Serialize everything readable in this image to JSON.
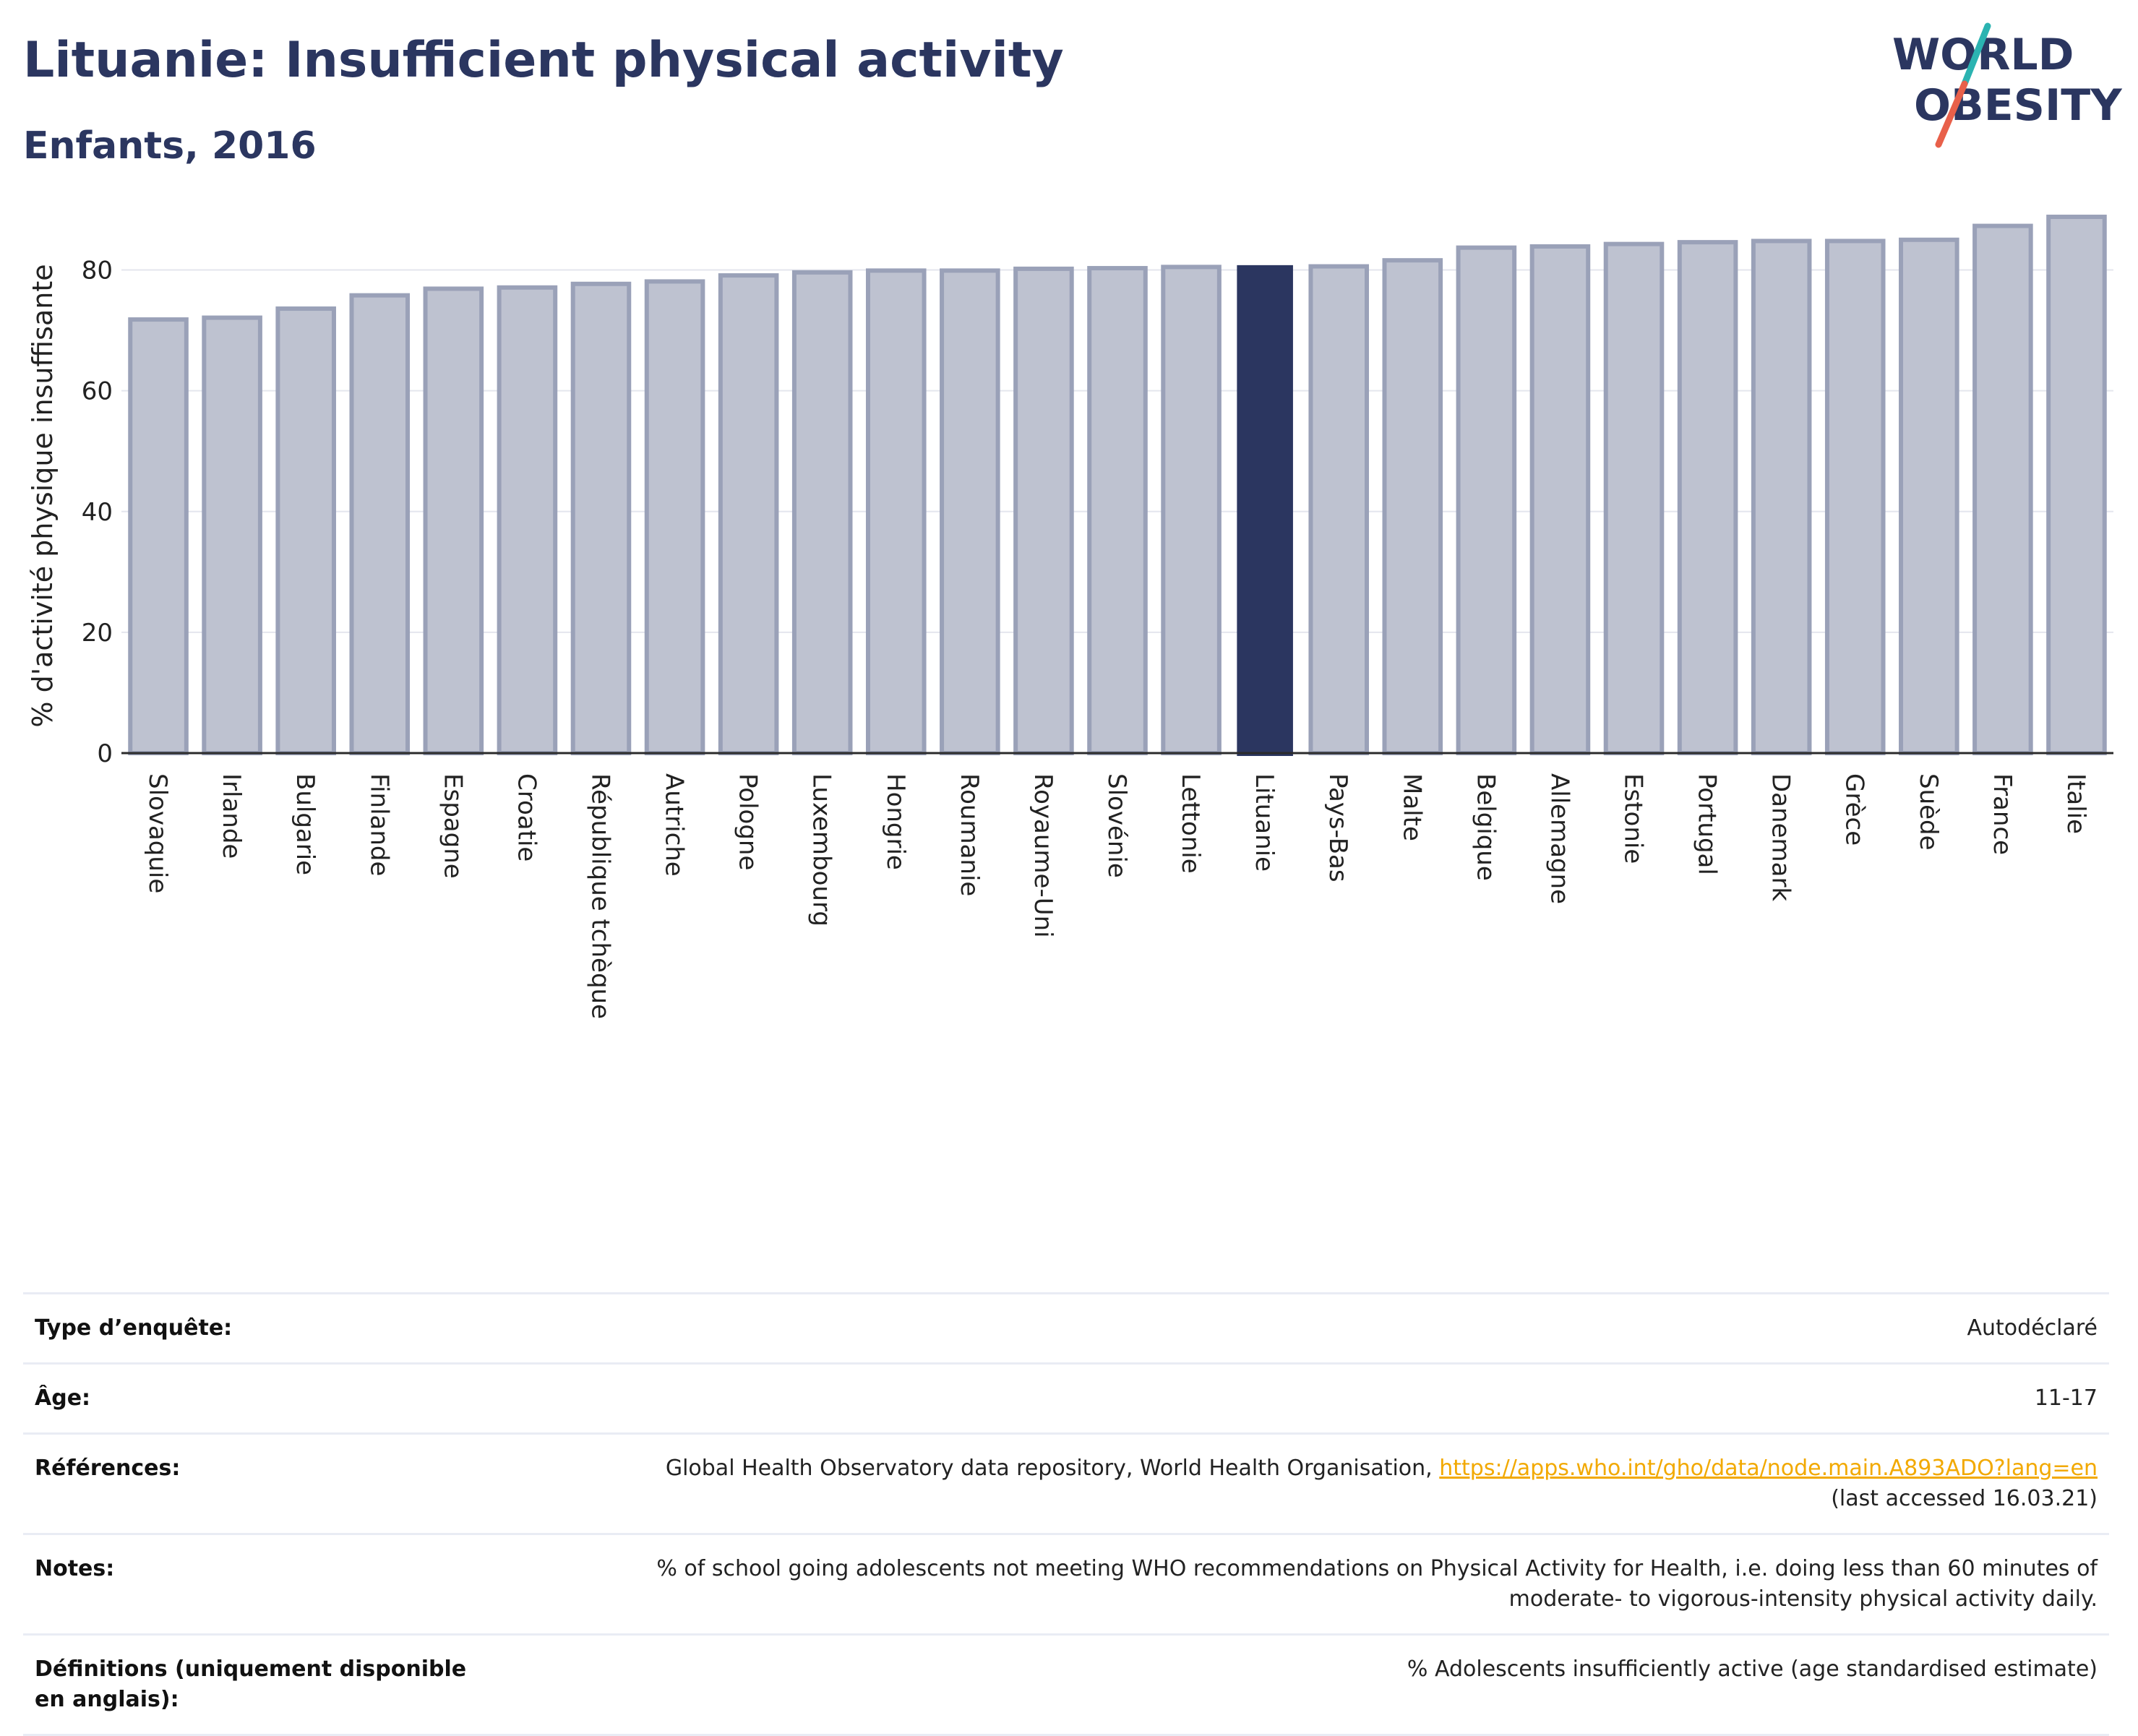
{
  "title": "Lituanie: Insufficient physical activity",
  "subtitle": "Enfants, 2016",
  "logo": {
    "line1": "WORLD",
    "line2": "OBESITY"
  },
  "colors": {
    "title": "#2b3660",
    "bar": "#bec2d0",
    "bar_outline": "#9aa1b8",
    "highlight": "#2b3660",
    "link": "#f2a900"
  },
  "chart_data": {
    "type": "bar",
    "ylabel": "% d'activité physique insuffisante",
    "ylim": [
      0,
      90
    ],
    "yticks": [
      0,
      20,
      40,
      60,
      80
    ],
    "grid": true,
    "highlight": "Lituanie",
    "categories": [
      "Slovaquie",
      "Irlande",
      "Bulgarie",
      "Finlande",
      "Espagne",
      "Croatie",
      "République tchèque",
      "Autriche",
      "Pologne",
      "Luxembourg",
      "Hongrie",
      "Roumanie",
      "Royaume-Uni",
      "Slovénie",
      "Lettonie",
      "Lituanie",
      "Pays-Bas",
      "Malte",
      "Belgique",
      "Allemagne",
      "Estonie",
      "Portugal",
      "Danemark",
      "Grèce",
      "Suède",
      "France",
      "Italie"
    ],
    "values": [
      71.8,
      72.1,
      73.6,
      75.8,
      76.9,
      77.1,
      77.7,
      78.1,
      79.1,
      79.6,
      79.9,
      79.9,
      80.2,
      80.3,
      80.5,
      80.8,
      80.6,
      81.6,
      83.7,
      83.9,
      84.3,
      84.6,
      84.8,
      84.8,
      85.0,
      87.3,
      88.8
    ]
  },
  "info": {
    "survey_type": {
      "label": "Type d’enquête:",
      "value": "Autodéclaré"
    },
    "age": {
      "label": "Âge:",
      "value": "11-17"
    },
    "references": {
      "label": "Références:",
      "text": "Global Health Observatory data repository, World Health Organisation,",
      "link": "https://apps.who.int/gho/data/node.main.A893ADO?lang=en",
      "accessed": "(last accessed 16.03.21)"
    },
    "notes": {
      "label": "Notes:",
      "line1": "% of school going adolescents not meeting WHO recommendations on Physical Activity for Health, i.e. doing less than 60 minutes of",
      "line2": "moderate- to vigorous-intensity physical activity daily."
    },
    "definitions": {
      "label": "Définitions (uniquement disponible en anglais):",
      "value": "% Adolescents insufficiently active (age standardised estimate)"
    }
  }
}
